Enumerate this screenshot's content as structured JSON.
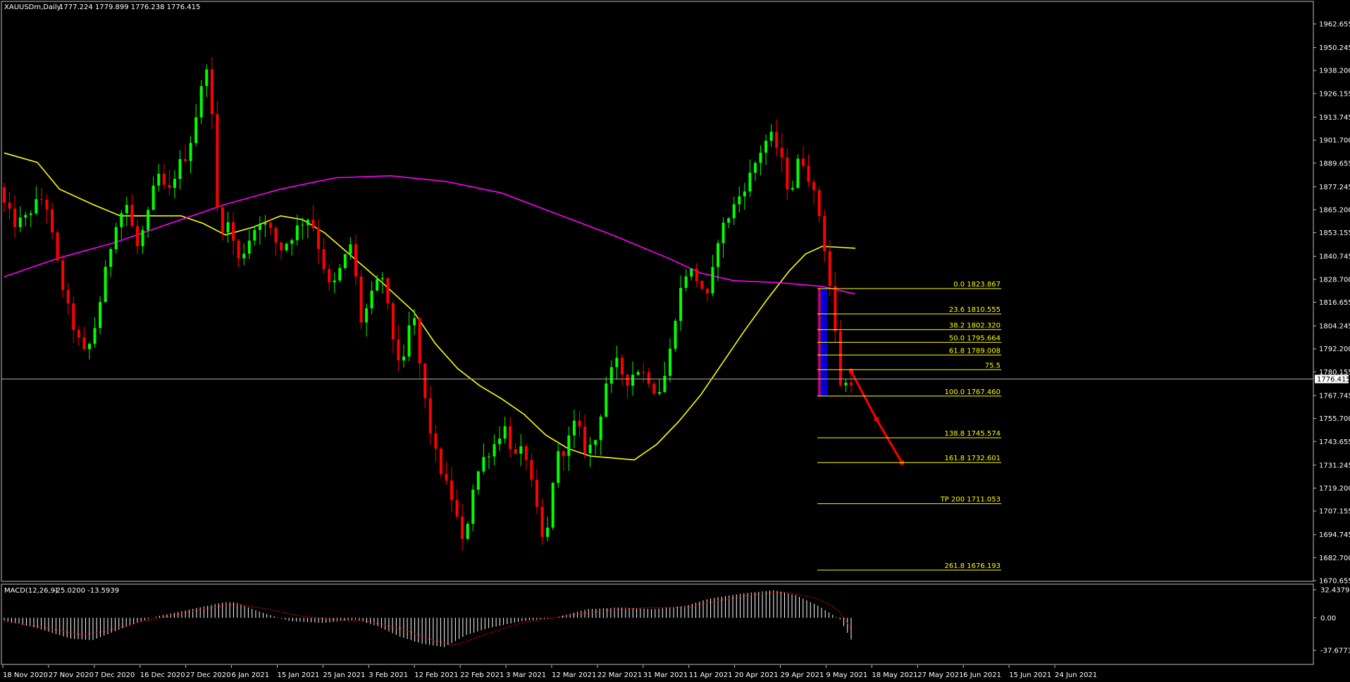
{
  "header": {
    "symbol": "XAUUSDm,Daily",
    "ohlc": "1777.224 1779.899 1776.238 1776.415"
  },
  "macd_header": {
    "label": "MACD(12,26,9)",
    "values": "-25.0200 -13.5939"
  },
  "colors": {
    "background": "#000000",
    "bull": "#00ff00",
    "bear": "#ff0000",
    "ma_fast": "#ffff00",
    "ma_slow": "#ff00ff",
    "fib": "#ffff00",
    "macd_hist": "#ffffff",
    "macd_signal": "#ff0000",
    "highlight": "#0000ff",
    "projection": "#ff0000"
  },
  "chart_data": {
    "type": "candlestick",
    "symbol": "XAUUSDm",
    "timeframe": "Daily",
    "price_axis": {
      "ylim": [
        1670.655,
        1968.0
      ],
      "ticks": [
        "1962.655",
        "1950.245",
        "1938.200",
        "1926.155",
        "1913.745",
        "1901.700",
        "1889.655",
        "1877.245",
        "1865.200",
        "1853.155",
        "1840.745",
        "1828.700",
        "1816.655",
        "1804.245",
        "1792.200",
        "1780.155",
        "1767.745",
        "1755.700",
        "1743.655",
        "1731.245",
        "1719.200",
        "1707.155",
        "1694.745",
        "1682.700",
        "1670.655"
      ],
      "current_price": "1776.415"
    },
    "date_labels": [
      "18 Nov 2020",
      "27 Nov 2020",
      "7 Dec 2020",
      "16 Dec 2020",
      "27 Dec 2020",
      "6 Jan 2021",
      "15 Jan 2021",
      "25 Jan 2021",
      "3 Feb 2021",
      "12 Feb 2021",
      "22 Feb 2021",
      "3 Mar 2021",
      "12 Mar 2021",
      "22 Mar 2021",
      "31 Mar 2021",
      "11 Apr 2021",
      "20 Apr 2021",
      "29 Apr 2021",
      "9 May 2021",
      "18 May 2021",
      "27 May 2021",
      "6 Jun 2021",
      "15 Jun 2021",
      "24 Jun 2021"
    ],
    "candle_anchors": [
      [
        1877,
        1881,
        1858,
        1868
      ],
      [
        1868,
        1872,
        1852,
        1858
      ],
      [
        1862,
        1867,
        1852,
        1860
      ],
      [
        1862,
        1870,
        1860,
        1868
      ],
      [
        1869,
        1878,
        1864,
        1872
      ],
      [
        1872,
        1876,
        1835,
        1842
      ],
      [
        1842,
        1850,
        1815,
        1818
      ],
      [
        1818,
        1830,
        1790,
        1800
      ],
      [
        1795,
        1812,
        1765,
        1788
      ],
      [
        1788,
        1812,
        1778,
        1806
      ],
      [
        1806,
        1840,
        1800,
        1835
      ],
      [
        1835,
        1862,
        1830,
        1860
      ],
      [
        1860,
        1880,
        1850,
        1868
      ],
      [
        1868,
        1878,
        1835,
        1845
      ],
      [
        1845,
        1868,
        1840,
        1860
      ],
      [
        1860,
        1892,
        1855,
        1885
      ],
      [
        1885,
        1895,
        1865,
        1872
      ],
      [
        1872,
        1900,
        1858,
        1888
      ],
      [
        1888,
        1912,
        1880,
        1895
      ],
      [
        1895,
        1925,
        1880,
        1920
      ],
      [
        1920,
        1953,
        1908,
        1946
      ],
      [
        1946,
        1960,
        1848,
        1855
      ],
      [
        1855,
        1872,
        1842,
        1858
      ],
      [
        1858,
        1865,
        1830,
        1838
      ],
      [
        1838,
        1856,
        1824,
        1850
      ],
      [
        1850,
        1868,
        1838,
        1860
      ],
      [
        1860,
        1870,
        1848,
        1855
      ],
      [
        1855,
        1868,
        1838,
        1844
      ],
      [
        1844,
        1860,
        1832,
        1850
      ],
      [
        1850,
        1868,
        1840,
        1858
      ],
      [
        1858,
        1872,
        1848,
        1862
      ],
      [
        1862,
        1868,
        1835,
        1842
      ],
      [
        1842,
        1850,
        1815,
        1822
      ],
      [
        1822,
        1838,
        1812,
        1835
      ],
      [
        1835,
        1852,
        1828,
        1848
      ],
      [
        1848,
        1852,
        1800,
        1806
      ],
      [
        1806,
        1825,
        1798,
        1820
      ],
      [
        1820,
        1840,
        1812,
        1832
      ],
      [
        1832,
        1840,
        1795,
        1800
      ],
      [
        1800,
        1812,
        1775,
        1780
      ],
      [
        1780,
        1822,
        1772,
        1815
      ],
      [
        1815,
        1822,
        1768,
        1772
      ],
      [
        1772,
        1790,
        1738,
        1742
      ],
      [
        1742,
        1752,
        1718,
        1725
      ],
      [
        1725,
        1742,
        1700,
        1712
      ],
      [
        1712,
        1728,
        1680,
        1688
      ],
      [
        1688,
        1730,
        1680,
        1722
      ],
      [
        1722,
        1742,
        1712,
        1735
      ],
      [
        1735,
        1750,
        1725,
        1742
      ],
      [
        1742,
        1760,
        1730,
        1752
      ],
      [
        1752,
        1760,
        1728,
        1735
      ],
      [
        1735,
        1748,
        1720,
        1740
      ],
      [
        1740,
        1745,
        1708,
        1712
      ],
      [
        1712,
        1720,
        1680,
        1685
      ],
      [
        1685,
        1742,
        1680,
        1735
      ],
      [
        1735,
        1745,
        1725,
        1740
      ],
      [
        1740,
        1762,
        1730,
        1755
      ],
      [
        1755,
        1762,
        1730,
        1738
      ],
      [
        1738,
        1752,
        1725,
        1745
      ],
      [
        1745,
        1782,
        1740,
        1775
      ],
      [
        1775,
        1792,
        1768,
        1785
      ],
      [
        1785,
        1798,
        1768,
        1775
      ],
      [
        1775,
        1790,
        1768,
        1782
      ],
      [
        1782,
        1795,
        1770,
        1778
      ],
      [
        1778,
        1790,
        1755,
        1768
      ],
      [
        1768,
        1790,
        1760,
        1782
      ],
      [
        1782,
        1825,
        1775,
        1818
      ],
      [
        1818,
        1845,
        1810,
        1835
      ],
      [
        1835,
        1842,
        1815,
        1828
      ],
      [
        1828,
        1845,
        1810,
        1818
      ],
      [
        1818,
        1860,
        1815,
        1852
      ],
      [
        1852,
        1868,
        1845,
        1862
      ],
      [
        1862,
        1878,
        1855,
        1872
      ],
      [
        1872,
        1890,
        1860,
        1882
      ],
      [
        1882,
        1900,
        1875,
        1895
      ],
      [
        1895,
        1912,
        1885,
        1905
      ],
      [
        1905,
        1912,
        1885,
        1895
      ],
      [
        1895,
        1905,
        1865,
        1872
      ],
      [
        1872,
        1902,
        1865,
        1895
      ],
      [
        1895,
        1905,
        1875,
        1880
      ],
      [
        1880,
        1888,
        1855,
        1860
      ],
      [
        1860,
        1870,
        1818,
        1822
      ],
      [
        1822,
        1826,
        1767,
        1772
      ],
      [
        1772,
        1792,
        1767,
        1776
      ]
    ],
    "moving_averages": [
      {
        "color": "#ffff00",
        "anchors": [
          [
            0,
            1895
          ],
          [
            0.03,
            1890
          ],
          [
            0.05,
            1876
          ],
          [
            0.08,
            1868
          ],
          [
            0.105,
            1862
          ],
          [
            0.13,
            1862
          ],
          [
            0.16,
            1862
          ],
          [
            0.18,
            1858
          ],
          [
            0.2,
            1852
          ],
          [
            0.225,
            1856
          ],
          [
            0.25,
            1862
          ],
          [
            0.27,
            1860
          ],
          [
            0.29,
            1853
          ],
          [
            0.31,
            1843
          ],
          [
            0.34,
            1828
          ],
          [
            0.37,
            1812
          ],
          [
            0.39,
            1795
          ],
          [
            0.41,
            1782
          ],
          [
            0.43,
            1773
          ],
          [
            0.45,
            1766
          ],
          [
            0.47,
            1758
          ],
          [
            0.49,
            1747
          ],
          [
            0.51,
            1740
          ],
          [
            0.53,
            1736
          ],
          [
            0.55,
            1735
          ],
          [
            0.57,
            1734
          ],
          [
            0.59,
            1742
          ],
          [
            0.61,
            1754
          ],
          [
            0.63,
            1768
          ],
          [
            0.65,
            1785
          ],
          [
            0.67,
            1802
          ],
          [
            0.69,
            1818
          ],
          [
            0.71,
            1833
          ],
          [
            0.725,
            1842
          ],
          [
            0.74,
            1846
          ],
          [
            0.77,
            1845
          ]
        ]
      },
      {
        "color": "#ff00ff",
        "anchors": [
          [
            0,
            1830
          ],
          [
            0.05,
            1840
          ],
          [
            0.1,
            1848
          ],
          [
            0.15,
            1858
          ],
          [
            0.2,
            1868
          ],
          [
            0.25,
            1876
          ],
          [
            0.3,
            1882
          ],
          [
            0.35,
            1883
          ],
          [
            0.4,
            1880
          ],
          [
            0.45,
            1874
          ],
          [
            0.5,
            1863
          ],
          [
            0.55,
            1852
          ],
          [
            0.6,
            1840
          ],
          [
            0.63,
            1832
          ],
          [
            0.66,
            1828
          ],
          [
            0.7,
            1827
          ],
          [
            0.74,
            1825
          ],
          [
            0.77,
            1821
          ]
        ]
      }
    ],
    "fibonacci": [
      {
        "label": "0.0 1823.867",
        "price": 1823.867
      },
      {
        "label": "23.6 1810.555",
        "price": 1810.555
      },
      {
        "label": "38.2 1802.320",
        "price": 1802.32
      },
      {
        "label": "50.0 1795.664",
        "price": 1795.664
      },
      {
        "label": "61.8 1789.008",
        "price": 1789.008
      },
      {
        "label": "75.5",
        "price": 1781.3
      },
      {
        "label": "100.0 1767.460",
        "price": 1767.46
      },
      {
        "label": "138.8 1745.574",
        "price": 1745.574
      },
      {
        "label": "161.8 1732.601",
        "price": 1732.601
      },
      {
        "label": "TP 200 1711.053",
        "price": 1711.053
      },
      {
        "label": "261.8 1676.193",
        "price": 1676.193
      }
    ],
    "projection": [
      [
        1780.5
      ],
      [
        1755.3
      ],
      [
        1732.6
      ]
    ],
    "macd": {
      "ylim": [
        -37.6773,
        32.4379
      ],
      "ticks": [
        "32.4379",
        "0.00",
        "-37.6773"
      ],
      "histogram_anchors": [
        [
          0,
          -3
        ],
        [
          0.03,
          -12
        ],
        [
          0.06,
          -24
        ],
        [
          0.08,
          -26
        ],
        [
          0.1,
          -16
        ],
        [
          0.12,
          -6
        ],
        [
          0.14,
          2
        ],
        [
          0.17,
          10
        ],
        [
          0.2,
          18
        ],
        [
          0.21,
          18
        ],
        [
          0.23,
          8
        ],
        [
          0.26,
          -4
        ],
        [
          0.29,
          -6
        ],
        [
          0.32,
          -2
        ],
        [
          0.34,
          -10
        ],
        [
          0.36,
          -22
        ],
        [
          0.38,
          -30
        ],
        [
          0.4,
          -34
        ],
        [
          0.42,
          -20
        ],
        [
          0.44,
          -12
        ],
        [
          0.47,
          -4
        ],
        [
          0.5,
          0
        ],
        [
          0.53,
          10
        ],
        [
          0.56,
          12
        ],
        [
          0.59,
          10
        ],
        [
          0.62,
          14
        ],
        [
          0.64,
          22
        ],
        [
          0.67,
          28
        ],
        [
          0.7,
          32
        ],
        [
          0.72,
          26
        ],
        [
          0.74,
          14
        ],
        [
          0.76,
          -2
        ],
        [
          0.77,
          -25
        ]
      ],
      "signal_anchors": [
        [
          0,
          -4
        ],
        [
          0.04,
          -12
        ],
        [
          0.07,
          -20
        ],
        [
          0.09,
          -16
        ],
        [
          0.12,
          -6
        ],
        [
          0.15,
          2
        ],
        [
          0.18,
          10
        ],
        [
          0.21,
          16
        ],
        [
          0.24,
          10
        ],
        [
          0.27,
          2
        ],
        [
          0.3,
          -2
        ],
        [
          0.33,
          -4
        ],
        [
          0.36,
          -12
        ],
        [
          0.39,
          -26
        ],
        [
          0.41,
          -32
        ],
        [
          0.44,
          -18
        ],
        [
          0.47,
          -6
        ],
        [
          0.5,
          0
        ],
        [
          0.53,
          6
        ],
        [
          0.56,
          10
        ],
        [
          0.59,
          12
        ],
        [
          0.62,
          12
        ],
        [
          0.65,
          20
        ],
        [
          0.68,
          27
        ],
        [
          0.71,
          30
        ],
        [
          0.74,
          22
        ],
        [
          0.76,
          8
        ],
        [
          0.77,
          -13.6
        ]
      ]
    }
  }
}
